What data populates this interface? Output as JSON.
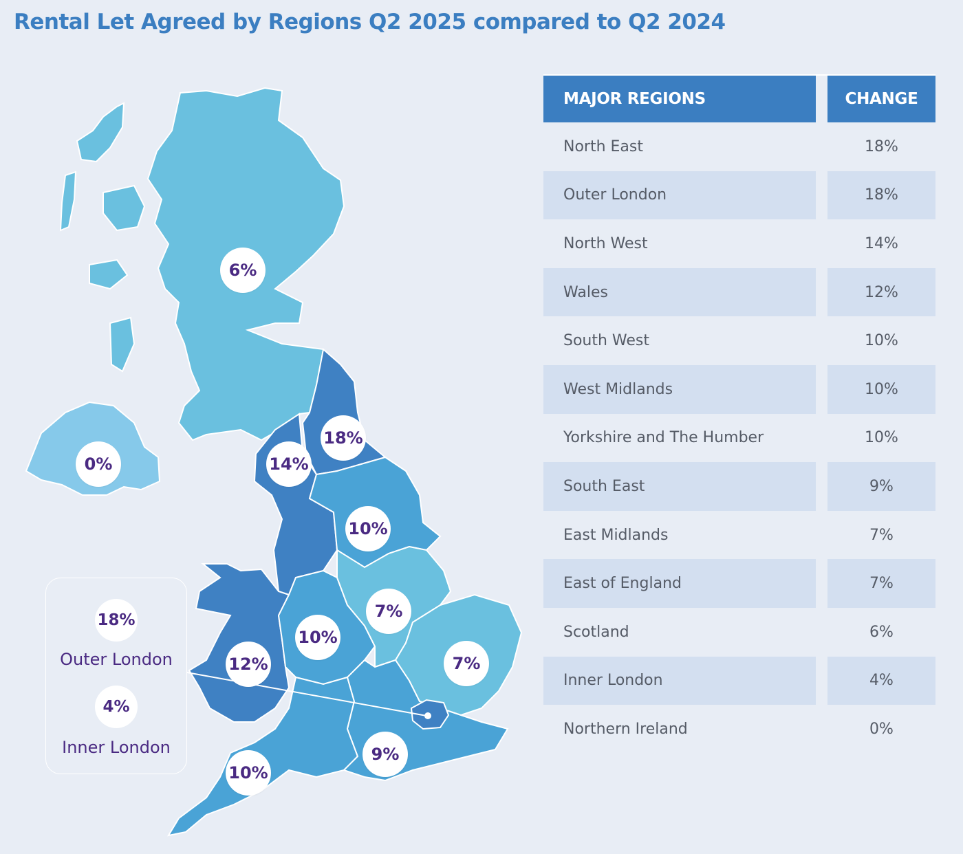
{
  "title": "Rental Let Agreed by Regions Q2 2025 compared to Q2 2024",
  "colors": {
    "lightest": "#86c9ea",
    "light": "#6ac0df",
    "medium": "#4aa3d6",
    "dark": "#3f81c3",
    "badge_text": "#4a2a82",
    "header": "#3b7ec1"
  },
  "map": {
    "badges": {
      "scotland": "6%",
      "northern_ireland": "0%",
      "north_east": "18%",
      "north_west": "14%",
      "yorkshire": "10%",
      "east_midlands": "7%",
      "west_midlands": "10%",
      "wales": "12%",
      "east_of_england": "7%",
      "south_east": "9%",
      "south_west": "10%"
    },
    "inset": {
      "outer_value": "18%",
      "outer_label": "Outer London",
      "inner_value": "4%",
      "inner_label": "Inner London"
    }
  },
  "table": {
    "header_region": "MAJOR REGIONS",
    "header_change": "CHANGE",
    "rows": [
      {
        "region": "North East",
        "change": "18%"
      },
      {
        "region": "Outer London",
        "change": "18%"
      },
      {
        "region": "North West",
        "change": "14%"
      },
      {
        "region": "Wales",
        "change": "12%"
      },
      {
        "region": "South West",
        "change": "10%"
      },
      {
        "region": "West Midlands",
        "change": "10%"
      },
      {
        "region": "Yorkshire and The Humber",
        "change": "10%"
      },
      {
        "region": "South East",
        "change": "9%"
      },
      {
        "region": "East Midlands",
        "change": "7%"
      },
      {
        "region": "East of England",
        "change": "7%"
      },
      {
        "region": "Scotland",
        "change": "6%"
      },
      {
        "region": "Inner London",
        "change": "4%"
      },
      {
        "region": "Northern Ireland",
        "change": "0%"
      }
    ]
  }
}
